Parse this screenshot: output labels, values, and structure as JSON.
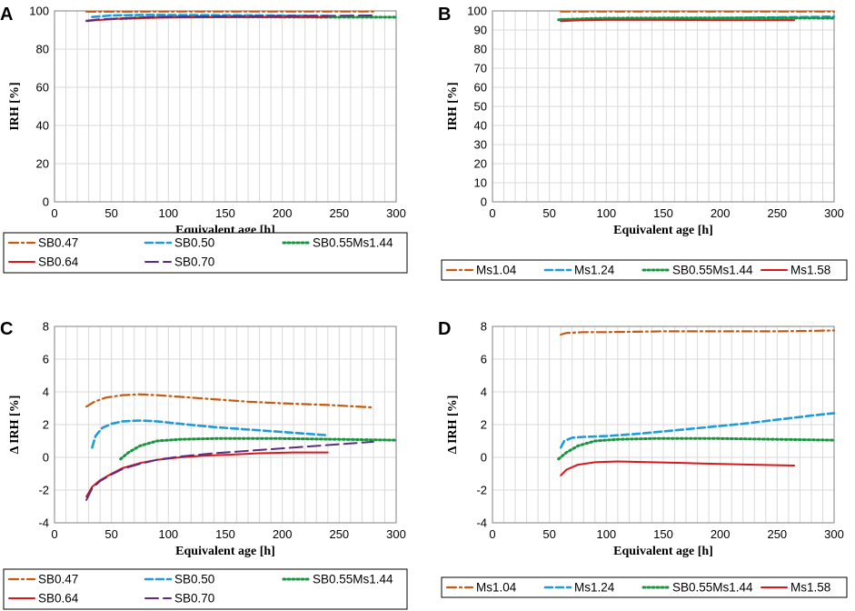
{
  "styles": {
    "SB0.47": {
      "color": "#c55a11",
      "dash": "10 4 2 4",
      "width": 2.2
    },
    "Ms1.04": {
      "color": "#c55a11",
      "dash": "10 4 2 4",
      "width": 2.2
    },
    "SB0.50": {
      "color": "#1f9bd7",
      "dash": "8 4",
      "width": 2.6
    },
    "Ms1.24": {
      "color": "#1f9bd7",
      "dash": "8 4",
      "width": 2.6
    },
    "SB0.55Ms1.44": {
      "color": "#1a9641",
      "dash": "2 3",
      "width": 3
    },
    "SB0.64": {
      "color": "#d7191c",
      "dash": "",
      "width": 2
    },
    "Ms1.58": {
      "color": "#d7191c",
      "dash": "",
      "width": 2
    },
    "SB0.70": {
      "color": "#5b2c83",
      "dash": "14 6",
      "width": 2
    }
  },
  "chart_data": [
    {
      "panel": "A",
      "type": "line",
      "xlabel": "Equivalent age [h]",
      "ylabel": "IRH [%]",
      "xlim": [
        0,
        300
      ],
      "ylim": [
        0,
        100
      ],
      "yticks": [
        0,
        20,
        40,
        60,
        80,
        100
      ],
      "xticks": [
        0,
        50,
        100,
        150,
        200,
        250,
        300
      ],
      "series": [
        {
          "name": "SB0.47",
          "x": [
            28,
            60,
            100,
            150,
            200,
            250,
            280
          ],
          "y": [
            99.6,
            99.6,
            99.7,
            99.7,
            99.7,
            99.7,
            99.7
          ]
        },
        {
          "name": "SB0.50",
          "x": [
            33,
            50,
            80,
            120,
            180,
            240
          ],
          "y": [
            96.8,
            97.6,
            97.9,
            97.8,
            97.6,
            97.4
          ]
        },
        {
          "name": "SB0.55Ms1.44",
          "x": [
            58,
            80,
            100,
            150,
            200,
            250,
            300
          ],
          "y": [
            95.9,
            96.5,
            96.8,
            96.9,
            96.8,
            96.7,
            96.7
          ]
        },
        {
          "name": "SB0.64",
          "x": [
            28,
            40,
            60,
            80,
            100,
            150,
            200,
            240
          ],
          "y": [
            94.6,
            95.3,
            96.0,
            96.3,
            96.5,
            96.7,
            96.8,
            96.8
          ]
        },
        {
          "name": "SB0.70",
          "x": [
            28,
            40,
            60,
            80,
            100,
            150,
            200,
            250,
            280
          ],
          "y": [
            94.9,
            95.6,
            96.2,
            96.6,
            96.9,
            97.2,
            97.4,
            97.5,
            97.6
          ]
        }
      ]
    },
    {
      "panel": "B",
      "type": "line",
      "xlabel": "Equivalent age [h]",
      "ylabel": "IRH [%]",
      "xlim": [
        0,
        300
      ],
      "ylim": [
        0,
        100
      ],
      "yticks": [
        0,
        10,
        20,
        30,
        40,
        50,
        60,
        70,
        80,
        90,
        100
      ],
      "xticks": [
        0,
        50,
        100,
        150,
        200,
        250,
        300
      ],
      "series": [
        {
          "name": "Ms1.04",
          "x": [
            60,
            100,
            150,
            200,
            250,
            300
          ],
          "y": [
            99.7,
            99.7,
            99.7,
            99.7,
            99.7,
            99.7
          ]
        },
        {
          "name": "Ms1.24",
          "x": [
            60,
            100,
            150,
            200,
            250,
            300
          ],
          "y": [
            95.6,
            95.8,
            96.0,
            96.3,
            96.6,
            97.0
          ]
        },
        {
          "name": "SB0.55Ms1.44",
          "x": [
            58,
            80,
            100,
            150,
            200,
            250,
            300
          ],
          "y": [
            95.4,
            95.9,
            96.2,
            96.3,
            96.3,
            96.3,
            96.2
          ]
        },
        {
          "name": "Ms1.58",
          "x": [
            60,
            80,
            100,
            150,
            200,
            265
          ],
          "y": [
            94.6,
            95.2,
            95.3,
            95.3,
            95.2,
            95.2
          ]
        }
      ]
    },
    {
      "panel": "C",
      "type": "line",
      "xlabel": "Equivalent age [h]",
      "ylabel": "Δ IRH [%]",
      "xlim": [
        0,
        300
      ],
      "ylim": [
        -4,
        8
      ],
      "yticks": [
        -4,
        -2,
        0,
        2,
        4,
        6,
        8
      ],
      "xticks": [
        0,
        50,
        100,
        150,
        200,
        250,
        300
      ],
      "series": [
        {
          "name": "SB0.47",
          "x": [
            28,
            35,
            45,
            60,
            75,
            90,
            110,
            140,
            170,
            200,
            240,
            280
          ],
          "y": [
            3.1,
            3.4,
            3.65,
            3.8,
            3.85,
            3.8,
            3.7,
            3.55,
            3.4,
            3.3,
            3.2,
            3.05
          ]
        },
        {
          "name": "SB0.50",
          "x": [
            33,
            36,
            42,
            50,
            60,
            75,
            90,
            110,
            140,
            170,
            200,
            240
          ],
          "y": [
            0.6,
            1.3,
            1.8,
            2.05,
            2.2,
            2.25,
            2.2,
            2.05,
            1.85,
            1.7,
            1.55,
            1.35
          ]
        },
        {
          "name": "SB0.55Ms1.44",
          "x": [
            58,
            65,
            75,
            90,
            110,
            140,
            170,
            200,
            250,
            300
          ],
          "y": [
            -0.1,
            0.3,
            0.7,
            1.0,
            1.1,
            1.15,
            1.15,
            1.15,
            1.1,
            1.05
          ]
        },
        {
          "name": "SB0.64",
          "x": [
            28,
            33,
            40,
            50,
            60,
            75,
            90,
            110,
            130,
            150,
            180,
            210,
            240
          ],
          "y": [
            -2.4,
            -1.8,
            -1.4,
            -1.0,
            -0.65,
            -0.35,
            -0.15,
            0.0,
            0.1,
            0.15,
            0.25,
            0.3,
            0.3
          ]
        },
        {
          "name": "SB0.70",
          "x": [
            28,
            33,
            40,
            50,
            60,
            75,
            90,
            110,
            140,
            170,
            200,
            240,
            280
          ],
          "y": [
            -2.6,
            -1.9,
            -1.45,
            -1.05,
            -0.7,
            -0.4,
            -0.15,
            0.05,
            0.25,
            0.4,
            0.55,
            0.75,
            0.95
          ]
        }
      ]
    },
    {
      "panel": "D",
      "type": "line",
      "xlabel": "Equivalent age [h]",
      "ylabel": "Δ IRH [%]",
      "xlim": [
        0,
        300
      ],
      "ylim": [
        -4,
        8
      ],
      "yticks": [
        -4,
        -2,
        0,
        2,
        4,
        6,
        8
      ],
      "xticks": [
        0,
        50,
        100,
        150,
        200,
        250,
        300
      ],
      "series": [
        {
          "name": "Ms1.04",
          "x": [
            60,
            65,
            80,
            100,
            150,
            200,
            250,
            300
          ],
          "y": [
            7.5,
            7.6,
            7.65,
            7.65,
            7.7,
            7.7,
            7.7,
            7.75
          ]
        },
        {
          "name": "Ms1.24",
          "x": [
            60,
            63,
            70,
            80,
            100,
            130,
            160,
            190,
            220,
            250,
            280,
            300
          ],
          "y": [
            0.6,
            1.0,
            1.2,
            1.25,
            1.3,
            1.45,
            1.65,
            1.85,
            2.05,
            2.3,
            2.55,
            2.7
          ]
        },
        {
          "name": "SB0.55Ms1.44",
          "x": [
            58,
            65,
            75,
            90,
            110,
            140,
            170,
            200,
            250,
            300
          ],
          "y": [
            -0.1,
            0.3,
            0.7,
            1.0,
            1.1,
            1.15,
            1.15,
            1.15,
            1.1,
            1.05
          ]
        },
        {
          "name": "Ms1.58",
          "x": [
            60,
            65,
            75,
            90,
            110,
            140,
            170,
            200,
            230,
            265
          ],
          "y": [
            -1.1,
            -0.75,
            -0.45,
            -0.3,
            -0.25,
            -0.3,
            -0.35,
            -0.4,
            -0.45,
            -0.5
          ]
        }
      ]
    }
  ],
  "legends": [
    {
      "panel": "AC",
      "rows": [
        [
          "SB0.47",
          "SB0.50",
          "SB0.55Ms1.44"
        ],
        [
          "SB0.64",
          "SB0.70"
        ]
      ]
    },
    {
      "panel": "BD",
      "rows": [
        [
          "Ms1.04",
          "Ms1.24",
          "SB0.55Ms1.44",
          "Ms1.58"
        ]
      ]
    }
  ]
}
